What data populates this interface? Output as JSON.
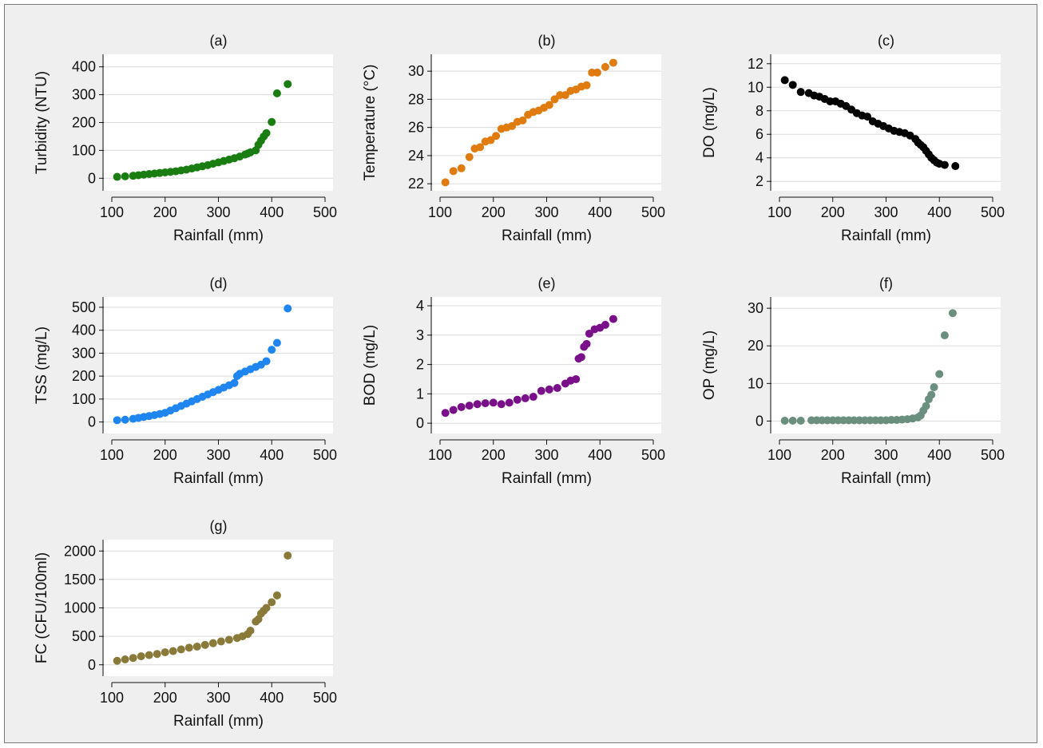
{
  "figure": {
    "background": "#efefef",
    "plot_background": "#ffffff",
    "grid_color": "#dcdcdc"
  },
  "chart_data": [
    {
      "id": "a",
      "panel_label": "(a)",
      "type": "scatter",
      "color": "#1a7d12",
      "xlabel": "Rainfall (mm)",
      "ylabel": "Turbidity (NTU)",
      "xlim": [
        85,
        515
      ],
      "ylim": [
        -45,
        445
      ],
      "xticks": [
        100,
        200,
        300,
        400,
        500
      ],
      "yticks": [
        0,
        100,
        200,
        300,
        400
      ],
      "grid": true,
      "x": [
        110,
        125,
        140,
        150,
        160,
        170,
        180,
        190,
        200,
        210,
        220,
        230,
        240,
        250,
        260,
        270,
        280,
        290,
        300,
        310,
        320,
        330,
        340,
        350,
        355,
        360,
        370,
        375,
        380,
        385,
        390,
        400,
        410,
        430
      ],
      "y": [
        5,
        7,
        9,
        11,
        13,
        15,
        17,
        19,
        21,
        23,
        25,
        28,
        31,
        35,
        39,
        43,
        47,
        52,
        57,
        62,
        67,
        72,
        78,
        85,
        89,
        93,
        100,
        120,
        135,
        150,
        162,
        202,
        305,
        338
      ]
    },
    {
      "id": "b",
      "panel_label": "(b)",
      "type": "scatter",
      "color": "#e07b10",
      "xlabel": "Rainfall (mm)",
      "ylabel": "Temperature (°C)",
      "xlim": [
        85,
        515
      ],
      "ylim": [
        21.5,
        31.2
      ],
      "xticks": [
        100,
        200,
        300,
        400,
        500
      ],
      "yticks": [
        22,
        24,
        26,
        28,
        30
      ],
      "grid": true,
      "x": [
        110,
        125,
        140,
        155,
        165,
        175,
        185,
        195,
        205,
        215,
        225,
        235,
        245,
        255,
        265,
        275,
        285,
        295,
        305,
        315,
        325,
        335,
        345,
        355,
        365,
        375,
        385,
        395,
        410,
        425
      ],
      "y": [
        22.1,
        22.9,
        23.1,
        23.9,
        24.5,
        24.6,
        25.0,
        25.1,
        25.4,
        25.9,
        26.0,
        26.1,
        26.4,
        26.5,
        26.9,
        27.1,
        27.2,
        27.4,
        27.6,
        28.0,
        28.3,
        28.3,
        28.6,
        28.7,
        28.9,
        29.0,
        29.9,
        29.9,
        30.3,
        30.6
      ]
    },
    {
      "id": "c",
      "panel_label": "(c)",
      "type": "scatter",
      "color": "#000000",
      "xlabel": "Rainfall (mm)",
      "ylabel": "DO (mg/L)",
      "xlim": [
        85,
        515
      ],
      "ylim": [
        1.2,
        12.8
      ],
      "xticks": [
        100,
        200,
        300,
        400,
        500
      ],
      "yticks": [
        2,
        4,
        6,
        8,
        10,
        12
      ],
      "grid": true,
      "x": [
        110,
        125,
        140,
        155,
        165,
        175,
        185,
        195,
        205,
        215,
        225,
        235,
        245,
        255,
        265,
        275,
        285,
        295,
        305,
        315,
        325,
        335,
        345,
        355,
        360,
        365,
        370,
        375,
        380,
        385,
        390,
        395,
        400,
        410,
        430
      ],
      "y": [
        10.6,
        10.2,
        9.6,
        9.5,
        9.3,
        9.2,
        9.0,
        8.8,
        8.8,
        8.6,
        8.4,
        8.1,
        7.8,
        7.6,
        7.5,
        7.1,
        6.9,
        6.7,
        6.5,
        6.3,
        6.2,
        6.1,
        5.9,
        5.6,
        5.3,
        5.1,
        4.9,
        4.6,
        4.3,
        4.0,
        3.8,
        3.6,
        3.5,
        3.4,
        3.3
      ]
    },
    {
      "id": "d",
      "panel_label": "(d)",
      "type": "scatter",
      "color": "#1f85f0",
      "xlabel": "Rainfall (mm)",
      "ylabel": "TSS (mg/L)",
      "xlim": [
        85,
        515
      ],
      "ylim": [
        -50,
        545
      ],
      "xticks": [
        100,
        200,
        300,
        400,
        500
      ],
      "yticks": [
        0,
        100,
        200,
        300,
        400,
        500
      ],
      "grid": true,
      "x": [
        110,
        125,
        140,
        150,
        160,
        170,
        180,
        190,
        200,
        210,
        220,
        230,
        240,
        250,
        260,
        270,
        280,
        290,
        300,
        310,
        320,
        330,
        335,
        340,
        350,
        360,
        370,
        380,
        390,
        400,
        410,
        430
      ],
      "y": [
        8,
        10,
        14,
        18,
        22,
        26,
        30,
        35,
        40,
        50,
        60,
        70,
        80,
        90,
        100,
        110,
        120,
        130,
        140,
        150,
        160,
        170,
        200,
        210,
        220,
        230,
        240,
        250,
        265,
        315,
        345,
        495
      ]
    },
    {
      "id": "e",
      "panel_label": "(e)",
      "type": "scatter",
      "color": "#7a0f8a",
      "xlabel": "Rainfall (mm)",
      "ylabel": "BOD (mg/L)",
      "xlim": [
        85,
        515
      ],
      "ylim": [
        -0.35,
        4.3
      ],
      "xticks": [
        100,
        200,
        300,
        400,
        500
      ],
      "yticks": [
        0,
        1,
        2,
        3,
        4
      ],
      "grid": true,
      "x": [
        110,
        125,
        140,
        155,
        170,
        185,
        200,
        215,
        230,
        245,
        260,
        275,
        290,
        305,
        320,
        335,
        345,
        355,
        360,
        365,
        370,
        375,
        380,
        390,
        400,
        410,
        425
      ],
      "y": [
        0.35,
        0.45,
        0.55,
        0.6,
        0.65,
        0.68,
        0.7,
        0.65,
        0.7,
        0.8,
        0.85,
        0.9,
        1.1,
        1.15,
        1.2,
        1.35,
        1.45,
        1.5,
        2.2,
        2.25,
        2.6,
        2.7,
        3.05,
        3.2,
        3.25,
        3.35,
        3.55
      ]
    },
    {
      "id": "f",
      "panel_label": "(f)",
      "type": "scatter",
      "color": "#6b8f7f",
      "xlabel": "Rainfall (mm)",
      "ylabel": "OP (mg/L)",
      "xlim": [
        85,
        515
      ],
      "ylim": [
        -3.3,
        33
      ],
      "xticks": [
        100,
        200,
        300,
        400,
        500
      ],
      "yticks": [
        0,
        10,
        20,
        30
      ],
      "grid": true,
      "x": [
        110,
        125,
        140,
        160,
        170,
        180,
        190,
        200,
        210,
        220,
        230,
        240,
        250,
        260,
        270,
        280,
        290,
        300,
        310,
        320,
        330,
        340,
        350,
        360,
        365,
        370,
        375,
        380,
        385,
        390,
        400,
        410,
        425
      ],
      "y": [
        0.1,
        0.1,
        0.1,
        0.2,
        0.2,
        0.2,
        0.2,
        0.2,
        0.2,
        0.2,
        0.2,
        0.2,
        0.2,
        0.2,
        0.2,
        0.2,
        0.2,
        0.2,
        0.3,
        0.3,
        0.4,
        0.5,
        0.7,
        1.0,
        1.5,
        2.8,
        4.0,
        5.8,
        7.0,
        9.0,
        12.5,
        22.8,
        28.7
      ]
    },
    {
      "id": "g",
      "panel_label": "(g)",
      "type": "scatter",
      "color": "#8a7a3a",
      "xlabel": "Rainfall (mm)",
      "ylabel": "FC (CFU/100ml)",
      "xlim": [
        85,
        515
      ],
      "ylim": [
        -200,
        2200
      ],
      "xticks": [
        100,
        200,
        300,
        400,
        500
      ],
      "yticks": [
        0,
        500,
        1000,
        1500,
        2000
      ],
      "grid": true,
      "x": [
        110,
        125,
        140,
        155,
        170,
        185,
        200,
        215,
        230,
        245,
        260,
        275,
        290,
        305,
        320,
        335,
        345,
        355,
        360,
        370,
        375,
        380,
        385,
        390,
        400,
        410,
        430
      ],
      "y": [
        70,
        95,
        120,
        150,
        170,
        190,
        220,
        240,
        270,
        300,
        320,
        350,
        380,
        410,
        440,
        470,
        500,
        540,
        600,
        760,
        800,
        900,
        950,
        1000,
        1100,
        1220,
        1920
      ]
    }
  ]
}
